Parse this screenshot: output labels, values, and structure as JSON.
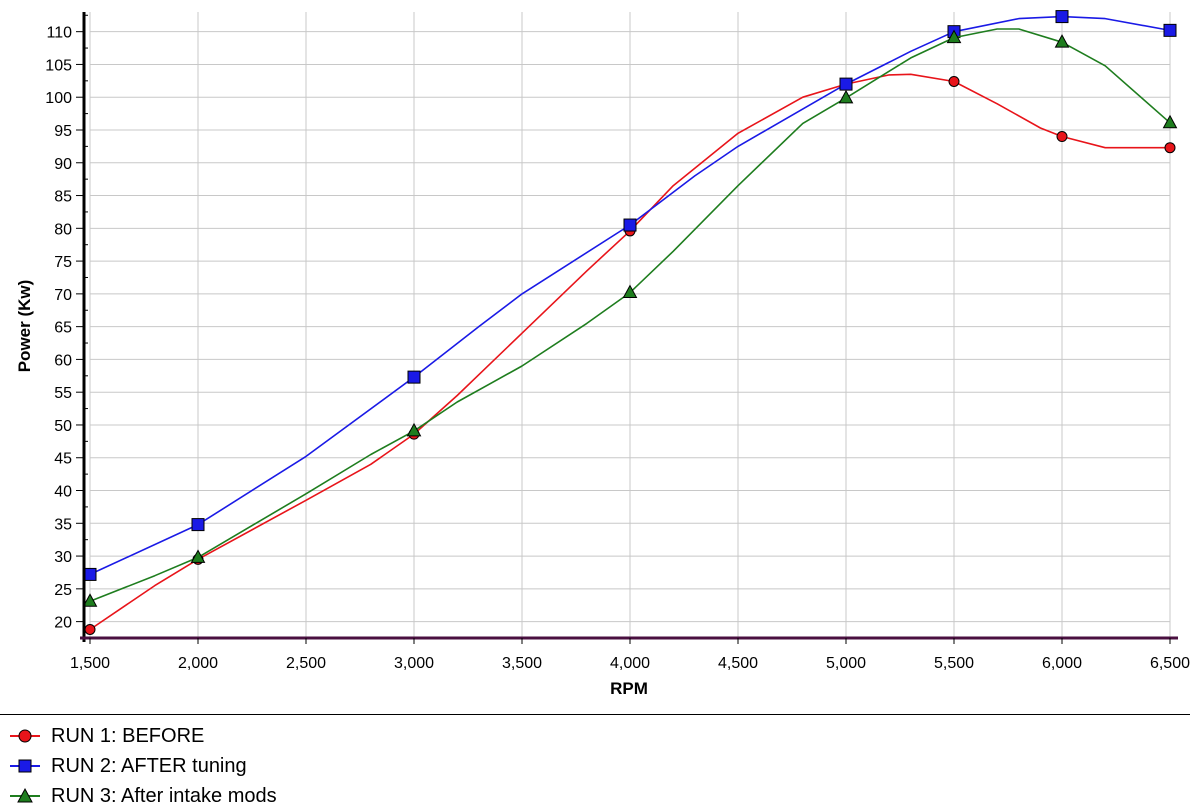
{
  "chart_data": {
    "type": "line",
    "xlabel": "RPM",
    "ylabel": "Power (Kw)",
    "xlim": [
      1500,
      6500
    ],
    "ylim": [
      17.5,
      113
    ],
    "x_ticks": [
      1500,
      2000,
      2500,
      3000,
      3500,
      4000,
      4500,
      5000,
      5500,
      6000,
      6500
    ],
    "x_tick_labels": [
      "1,500",
      "2,000",
      "2,500",
      "3,000",
      "3,500",
      "4,000",
      "4,500",
      "5,000",
      "5,500",
      "6,000",
      "6,500"
    ],
    "y_ticks": [
      20,
      25,
      30,
      35,
      40,
      45,
      50,
      55,
      60,
      65,
      70,
      75,
      80,
      85,
      90,
      95,
      100,
      105,
      110
    ],
    "y_tick_labels": [
      "20",
      "25",
      "30",
      "35",
      "40",
      "45",
      "50",
      "55",
      "60",
      "65",
      "70",
      "75",
      "80",
      "85",
      "90",
      "95",
      "100",
      "105",
      "110"
    ],
    "grid": true,
    "legend_position": "bottom",
    "series": [
      {
        "name": "RUN 1: BEFORE",
        "color": "#e8141a",
        "marker": "circle",
        "x": [
          1500,
          2000,
          3000,
          4000,
          5000,
          5500,
          6000,
          6500
        ],
        "y": [
          18.8,
          29.5,
          48.6,
          79.6,
          102,
          102.4,
          94,
          92.3
        ],
        "curve_x": [
          1500,
          1800,
          2000,
          2500,
          2800,
          3000,
          3200,
          3500,
          3800,
          4000,
          4200,
          4500,
          4800,
          5000,
          5200,
          5300,
          5500,
          5700,
          5900,
          6000,
          6200,
          6500
        ],
        "curve_y": [
          18.8,
          25.5,
          29.5,
          38.5,
          44,
          48.6,
          54.5,
          64,
          73.5,
          79.6,
          86.5,
          94.5,
          100,
          102,
          103.4,
          103.5,
          102.4,
          99,
          95.3,
          94,
          92.3,
          92.3
        ]
      },
      {
        "name": "RUN 2: AFTER tuning",
        "color": "#1a1ae6",
        "marker": "square",
        "x": [
          1500,
          2000,
          3000,
          4000,
          5000,
          5500,
          6000,
          6500
        ],
        "y": [
          27.2,
          34.8,
          57.3,
          80.5,
          102,
          110,
          112.3,
          110.2
        ],
        "curve_x": [
          1500,
          2000,
          2500,
          3000,
          3300,
          3500,
          4000,
          4300,
          4500,
          5000,
          5300,
          5500,
          5800,
          6000,
          6200,
          6500
        ],
        "curve_y": [
          27.2,
          34.8,
          45.2,
          57.3,
          65,
          70,
          80.5,
          88,
          92.5,
          102,
          107,
          110,
          112,
          112.3,
          112,
          110.2
        ]
      },
      {
        "name": "RUN 3: After intake mods",
        "color": "#1e7d1e",
        "marker": "triangle",
        "x": [
          1500,
          2000,
          3000,
          4000,
          5000,
          5500,
          6000,
          6500
        ],
        "y": [
          23.1,
          29.8,
          49.1,
          70.2,
          99.9,
          109.1,
          108.4,
          96.1
        ],
        "curve_x": [
          1500,
          1800,
          2000,
          2500,
          2800,
          3000,
          3200,
          3500,
          3800,
          4000,
          4200,
          4500,
          4800,
          5000,
          5300,
          5500,
          5700,
          5800,
          6000,
          6200,
          6500
        ],
        "curve_y": [
          23.1,
          27,
          29.8,
          39.5,
          45.5,
          49.1,
          53.5,
          59,
          65.5,
          70.2,
          76.5,
          86.5,
          96,
          99.9,
          106,
          109.1,
          110.4,
          110.4,
          108.4,
          104.8,
          96.1
        ]
      }
    ]
  }
}
